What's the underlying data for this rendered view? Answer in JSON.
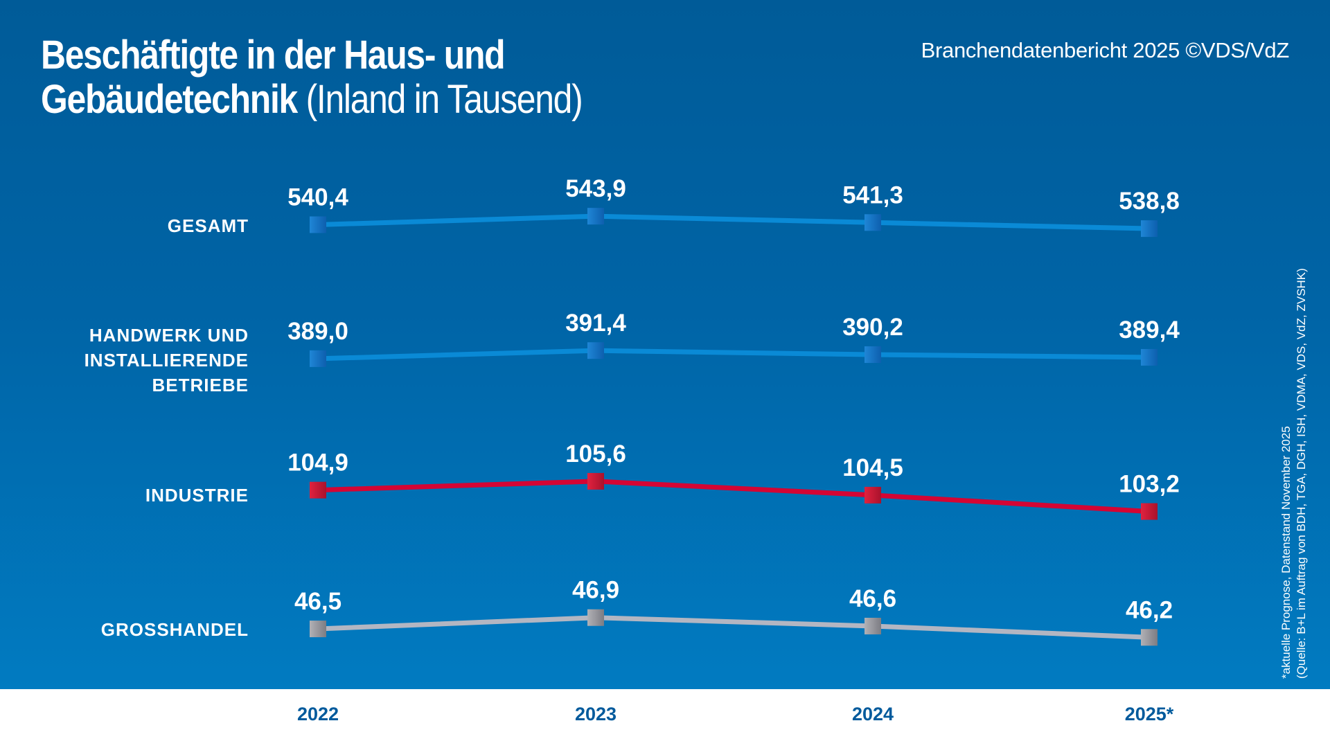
{
  "header": {
    "title_bold_line1": "Beschäftigte in der Haus- und",
    "title_bold_line2": "Gebäudetechnik",
    "title_light": "(Inland in Tausend)",
    "source": "Branchendatenbericht 2025 ©VDS/VdZ"
  },
  "footnote": {
    "line1": "*aktuelle Prognose, Datenstand November 2025",
    "line2": "(Quelle: B+L im Auftrag von BDH, TGA, DGH, ISH, VDMA, VDS, VdZ, ZVSHK)"
  },
  "colors": {
    "background_top": "#005b98",
    "background_bottom": "#017bc1",
    "year_label": "#005a9c",
    "blue_line": "#0a8ad6",
    "red_line": "#d40534",
    "grey_line": "#b3b6c2"
  },
  "chart_data": {
    "type": "line",
    "title": "Beschäftigte in der Haus- und Gebäudetechnik (Inland in Tausend)",
    "xlabel": "",
    "ylabel": "",
    "categories": [
      "2022",
      "2023",
      "2024",
      "2025*"
    ],
    "grid": false,
    "legend": "row labels left",
    "series": [
      {
        "name": "GESAMT",
        "label_lines": [
          "GESAMT"
        ],
        "color": "blue",
        "values": [
          540.4,
          543.9,
          541.3,
          538.8
        ],
        "labels": [
          "540,4",
          "543,9",
          "541,3",
          "538,8"
        ]
      },
      {
        "name": "HANDWERK UND INSTALLIERENDE BETRIEBE",
        "label_lines": [
          "HANDWERK UND",
          "INSTALLIERENDE",
          "BETRIEBE"
        ],
        "color": "blue",
        "values": [
          389.0,
          391.4,
          390.2,
          389.4
        ],
        "labels": [
          "389,0",
          "391,4",
          "390,2",
          "389,4"
        ]
      },
      {
        "name": "INDUSTRIE",
        "label_lines": [
          "INDUSTRIE"
        ],
        "color": "red",
        "values": [
          104.9,
          105.6,
          104.5,
          103.2
        ],
        "labels": [
          "104,9",
          "105,6",
          "104,5",
          "103,2"
        ]
      },
      {
        "name": "GROSSHANDEL",
        "label_lines": [
          "GROSSHANDEL"
        ],
        "color": "grey",
        "values": [
          46.5,
          46.9,
          46.6,
          46.2
        ],
        "labels": [
          "46,5",
          "46,9",
          "46,6",
          "46,2"
        ]
      }
    ],
    "annotation": "*aktuelle Prognose, Datenstand November 2025"
  }
}
